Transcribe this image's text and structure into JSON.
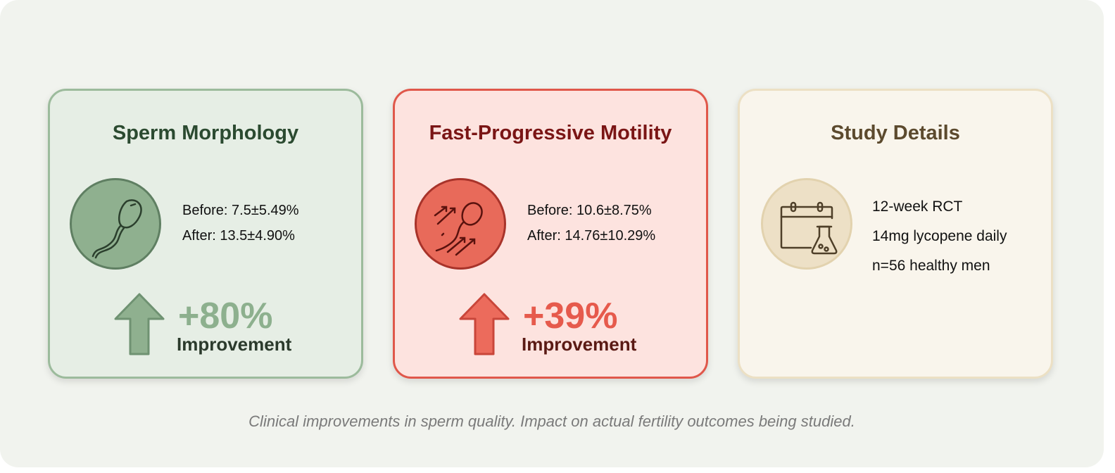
{
  "cards": [
    {
      "title": "Sperm Morphology",
      "icon": "sperm-icon",
      "before": "Before: 7.5±5.49%",
      "after": "After: 13.5±4.90%",
      "change": "+80%",
      "change_label": "Improvement",
      "accent": "#8db08e"
    },
    {
      "title": "Fast-Progressive Motility",
      "icon": "motile-sperm-icon",
      "before": "Before: 10.6±8.75%",
      "after": "After: 14.76±10.29%",
      "change": "+39%",
      "change_label": "Improvement",
      "accent": "#e65a4c"
    },
    {
      "title": "Study Details",
      "icon": "calendar-flask-icon",
      "lines": [
        "12-week RCT",
        "14mg lycopene daily",
        "n=56 healthy men"
      ],
      "accent": "#5c4a2e"
    }
  ],
  "caption": "Clinical improvements in sperm quality. Impact on actual fertility outcomes being studied."
}
